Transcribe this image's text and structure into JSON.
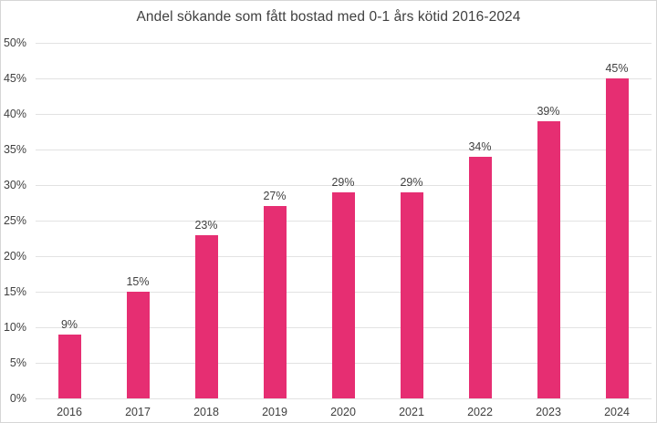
{
  "window": {
    "background": "#ffffff",
    "border_color": "#d6d6d6"
  },
  "chart_data": {
    "type": "bar",
    "title": "Andel sökande som fått bostad med 0-1 års kötid 2016-2024",
    "categories": [
      "2016",
      "2017",
      "2018",
      "2019",
      "2020",
      "2021",
      "2022",
      "2023",
      "2024"
    ],
    "values": [
      9,
      15,
      23,
      27,
      29,
      29,
      34,
      39,
      45
    ],
    "value_labels": [
      "9%",
      "15%",
      "23%",
      "27%",
      "29%",
      "29%",
      "34%",
      "39%",
      "45%"
    ],
    "xlabel": "",
    "ylabel": "",
    "ylim": [
      0,
      50
    ],
    "ytick_step": 5,
    "ytick_labels": [
      "0%",
      "5%",
      "10%",
      "15%",
      "20%",
      "25%",
      "30%",
      "35%",
      "40%",
      "45%",
      "50%"
    ],
    "grid": "horizontal",
    "legend_position": "none",
    "bar_color": "#e62e72",
    "grid_color": "#e2e2e2",
    "text_color": "#404040"
  }
}
